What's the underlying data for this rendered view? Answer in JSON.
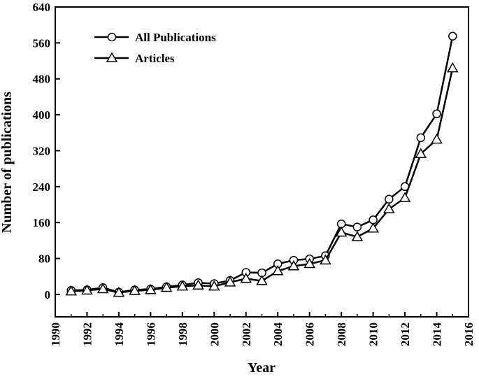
{
  "chart_data": {
    "type": "line",
    "xlabel": "Year",
    "ylabel": "Number of publications",
    "xlim": [
      1990,
      2016
    ],
    "ylim": [
      -50,
      640
    ],
    "xticks": [
      1990,
      1992,
      1994,
      1996,
      1998,
      2000,
      2002,
      2004,
      2006,
      2008,
      2010,
      2012,
      2014,
      2016
    ],
    "yticks": [
      0,
      80,
      160,
      240,
      320,
      400,
      480,
      560,
      640
    ],
    "grid": false,
    "legend_position": "top-left",
    "x": [
      1991,
      1992,
      1993,
      1994,
      1995,
      1996,
      1997,
      1998,
      1999,
      2000,
      2001,
      2002,
      2003,
      2004,
      2005,
      2006,
      2007,
      2008,
      2009,
      2010,
      2011,
      2012,
      2013,
      2014,
      2015
    ],
    "series": [
      {
        "name": "All Publications",
        "marker": "circle",
        "values": [
          9,
          10,
          15,
          5,
          10,
          12,
          17,
          21,
          26,
          24,
          31,
          49,
          48,
          68,
          76,
          79,
          86,
          157,
          150,
          166,
          212,
          240,
          349,
          402,
          575
        ]
      },
      {
        "name": "Articles",
        "marker": "triangle",
        "values": [
          7,
          9,
          12,
          4,
          8,
          10,
          15,
          18,
          20,
          18,
          27,
          35,
          30,
          52,
          63,
          68,
          76,
          138,
          128,
          147,
          190,
          215,
          313,
          345,
          504
        ]
      }
    ]
  }
}
